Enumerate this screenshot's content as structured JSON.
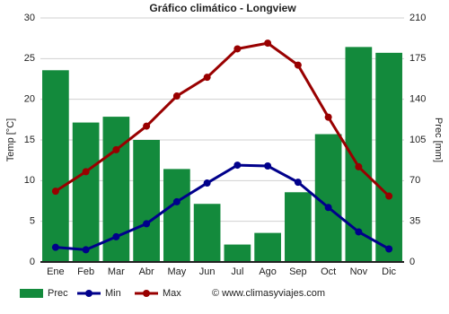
{
  "chart_data": {
    "type": "climate",
    "title": "Gráfico climático - Longview",
    "ylabel": "Temp [°C]",
    "y2label": "Prec [mm]",
    "footer": "© www.climasyviajes.com",
    "categories": [
      "Ene",
      "Feb",
      "Mar",
      "Abr",
      "May",
      "Jun",
      "Jul",
      "Ago",
      "Sep",
      "Oct",
      "Nov",
      "Dic"
    ],
    "ylim": [
      0,
      30
    ],
    "yticks": [
      0,
      5,
      10,
      15,
      20,
      25,
      30
    ],
    "y2lim": [
      0,
      210
    ],
    "y2ticks": [
      0,
      35,
      70,
      105,
      140,
      175,
      210
    ],
    "grid": true,
    "series": [
      {
        "name": "Prec",
        "kind": "bar",
        "axis": "y2",
        "color": "#138a3c",
        "values": [
          165,
          120,
          125,
          105,
          80,
          50,
          15,
          25,
          60,
          110,
          185,
          180
        ]
      },
      {
        "name": "Min",
        "kind": "line",
        "color": "#00008b",
        "values": [
          1.8,
          1.5,
          3.1,
          4.7,
          7.4,
          9.7,
          11.9,
          11.8,
          9.8,
          6.7,
          3.7,
          1.6
        ]
      },
      {
        "name": "Max",
        "kind": "line",
        "color": "#990000",
        "values": [
          8.7,
          11.1,
          13.8,
          16.7,
          20.4,
          22.7,
          26.2,
          26.9,
          24.2,
          17.8,
          11.7,
          8.1
        ]
      }
    ]
  }
}
